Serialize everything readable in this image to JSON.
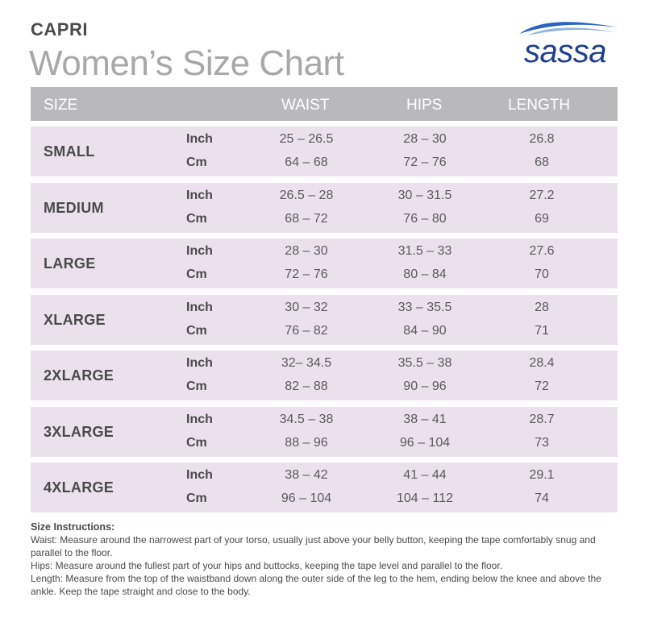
{
  "product": "CAPRI",
  "title": "Women’s Size Chart",
  "brand": "sassa",
  "colors": {
    "header_bg": "#b9b9bb",
    "row_bg": "#eae1ec",
    "brand_blue": "#1f3f8f",
    "title_gray": "#a8a8a8"
  },
  "table": {
    "headers": {
      "size": "SIZE",
      "waist": "WAIST",
      "hips": "HIPS",
      "length": "LENGTH"
    },
    "rows": [
      {
        "size": "SMALL",
        "inch_label": "Inch",
        "cm_label": "Cm",
        "waist_in": "25 – 26.5",
        "waist_cm": "64 – 68",
        "hips_in": "28 – 30",
        "hips_cm": "72 – 76",
        "length_in": "26.8",
        "length_cm": "68"
      },
      {
        "size": "MEDIUM",
        "inch_label": "Inch",
        "cm_label": "Cm",
        "waist_in": "26.5 – 28",
        "waist_cm": "68 – 72",
        "hips_in": "30 – 31.5",
        "hips_cm": "76 – 80",
        "length_in": "27.2",
        "length_cm": "69"
      },
      {
        "size": "LARGE",
        "inch_label": "Inch",
        "cm_label": "Cm",
        "waist_in": "28 – 30",
        "waist_cm": "72 – 76",
        "hips_in": "31.5 – 33",
        "hips_cm": "80 – 84",
        "length_in": "27.6",
        "length_cm": "70"
      },
      {
        "size": "XLARGE",
        "inch_label": "Inch",
        "cm_label": "Cm",
        "waist_in": "30 – 32",
        "waist_cm": "76 – 82",
        "hips_in": "33 – 35.5",
        "hips_cm": "84 – 90",
        "length_in": "28",
        "length_cm": "71"
      },
      {
        "size": "2XLARGE",
        "inch_label": "Inch",
        "cm_label": "Cm",
        "waist_in": "32– 34.5",
        "waist_cm": "82 – 88",
        "hips_in": "35.5 – 38",
        "hips_cm": "90  – 96",
        "length_in": "28.4",
        "length_cm": "72"
      },
      {
        "size": "3XLARGE",
        "inch_label": "Inch",
        "cm_label": "Cm",
        "waist_in": "34.5 – 38",
        "waist_cm": "88 – 96",
        "hips_in": "38 – 41",
        "hips_cm": "96 – 104",
        "length_in": "28.7",
        "length_cm": "73"
      },
      {
        "size": "4XLARGE",
        "inch_label": "Inch",
        "cm_label": "Cm",
        "waist_in": "38 – 42",
        "waist_cm": "96 – 104",
        "hips_in": "41 – 44",
        "hips_cm": "104 – 112",
        "length_in": "29.1",
        "length_cm": "74"
      }
    ]
  },
  "instructions": {
    "heading": "Size Instructions:",
    "lines": [
      "Waist: Measure around the narrowest part of your torso, usually just above your belly button, keeping the tape comfortably snug and parallel to the floor.",
      "Hips: Measure around the fullest part of your hips and buttocks, keeping the tape level and parallel to the floor.",
      "Length: Measure from the top of the waistband down along the outer side of the leg to the hem, ending below the knee and above the ankle. Keep the tape straight and close to the body."
    ]
  }
}
